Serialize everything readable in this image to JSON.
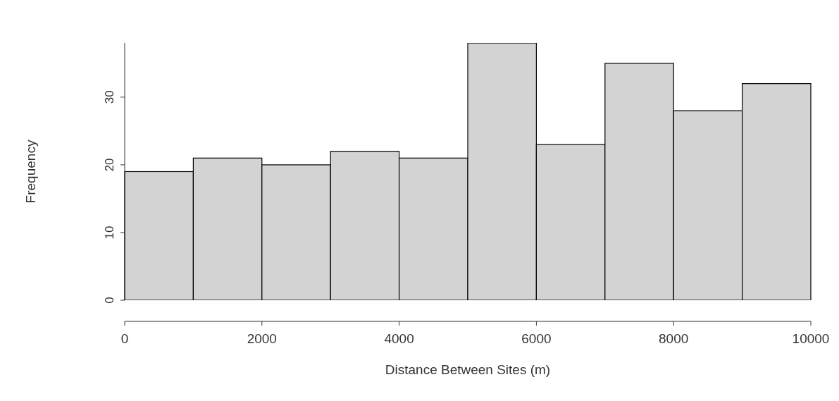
{
  "chart_data": {
    "type": "histogram",
    "xlabel": "Distance Between Sites (m)",
    "ylabel": "Frequency",
    "bins": [
      0,
      1000,
      2000,
      3000,
      4000,
      5000,
      6000,
      7000,
      8000,
      9000,
      10000
    ],
    "values": [
      19,
      21,
      20,
      22,
      21,
      38,
      23,
      35,
      28,
      32
    ],
    "color": "#d3d3d3",
    "xlim": [
      0,
      10000
    ],
    "xticks": [
      0,
      2000,
      4000,
      6000,
      8000,
      10000
    ],
    "ylim": [
      0,
      38
    ],
    "yticks": [
      0,
      10,
      20,
      30
    ]
  }
}
